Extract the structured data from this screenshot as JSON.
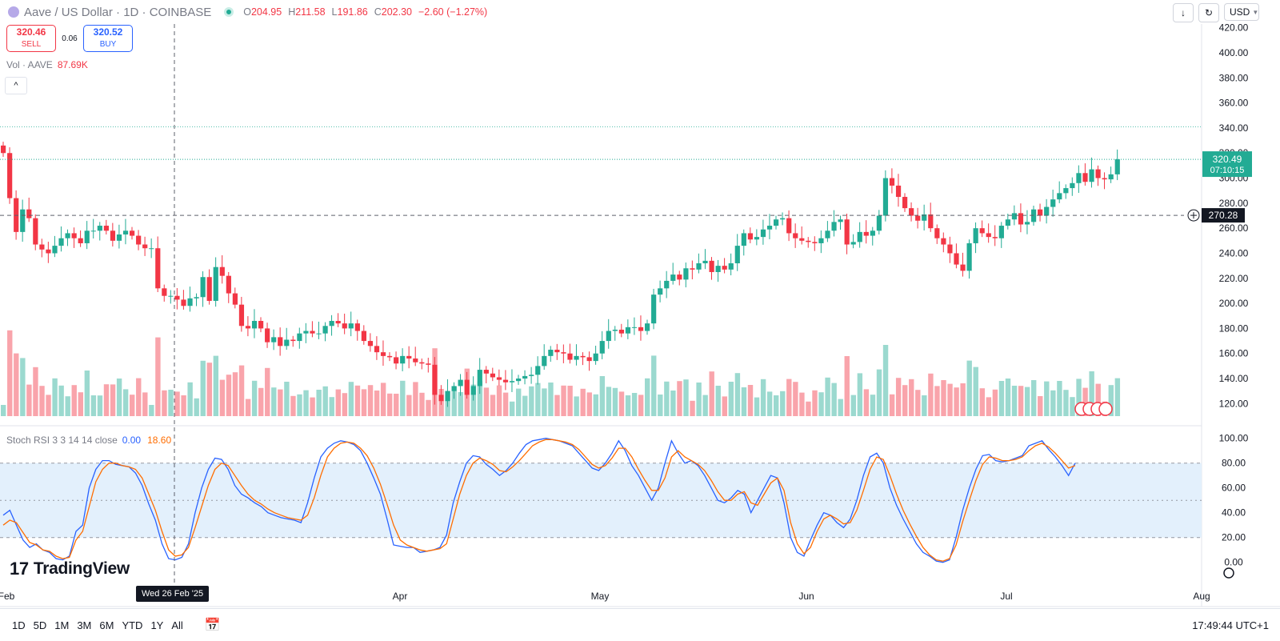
{
  "header": {
    "symbol_title": "Aave / US Dollar · 1D · COINBASE",
    "ohlc": [
      {
        "k": "O",
        "v": "204.95"
      },
      {
        "k": "H",
        "v": "211.58"
      },
      {
        "k": "L",
        "v": "191.86"
      },
      {
        "k": "C",
        "v": "202.30"
      }
    ],
    "change": "−2.60 (−1.27%)",
    "currency_button": "USD",
    "download_icon": "arrow-down-icon",
    "swap_icon": "swap-icon"
  },
  "trade": {
    "sell_price": "320.46",
    "sell_label": "SELL",
    "spread": "0.06",
    "buy_price": "320.52",
    "buy_label": "BUY"
  },
  "volume_legend": {
    "label": "Vol · AAVE",
    "value": "87.69K"
  },
  "rsi_legend": {
    "label": "Stoch RSI 3 3 14 14 close",
    "k_value": "0.00",
    "d_value": "18.60"
  },
  "price_tag": {
    "price": "320.49",
    "countdown": "07:10:15"
  },
  "crosshair_tag": {
    "price": "270.28"
  },
  "date_tooltip": "Wed 26 Feb '25",
  "bottom": {
    "ranges": [
      "1D",
      "5D",
      "1M",
      "3M",
      "6M",
      "YTD",
      "1Y",
      "All"
    ],
    "clock": "17:49:44 UTC+1"
  },
  "brand": "TradingView",
  "colors": {
    "up": "#22ab94",
    "down": "#f23645",
    "k_line": "#2962ff",
    "d_line": "#ff6d00",
    "band": "#e3f0fc"
  },
  "chart_data": [
    {
      "type": "candlestick",
      "title": "Aave / US Dollar · 1D · COINBASE",
      "x_tick_labels": [
        "Feb",
        "Apr",
        "May",
        "Jun",
        "Jul",
        "Aug"
      ],
      "y_tick_labels": [
        "120.00",
        "140.00",
        "160.00",
        "180.00",
        "200.00",
        "220.00",
        "240.00",
        "260.00",
        "280.00",
        "300.00",
        "320.00",
        "340.00",
        "360.00",
        "380.00",
        "400.00",
        "420.00"
      ],
      "ylim": [
        110,
        423
      ],
      "closes": [
        320,
        284,
        257,
        275,
        268,
        247,
        243,
        240,
        246,
        252,
        256,
        252,
        248,
        258,
        258,
        262,
        258,
        250,
        255,
        258,
        254,
        247,
        244,
        244,
        212,
        206,
        206,
        203,
        198,
        204,
        205,
        221,
        202,
        229,
        222,
        208,
        199,
        182,
        180,
        186,
        180,
        169,
        173,
        166,
        171,
        170,
        176,
        178,
        176,
        176,
        182,
        186,
        184,
        180,
        184,
        178,
        170,
        166,
        161,
        158,
        157,
        152,
        158,
        156,
        153,
        152,
        151,
        127,
        122,
        130,
        134,
        139,
        127,
        134,
        147,
        144,
        141,
        139,
        137,
        138,
        140,
        142,
        143,
        150,
        158,
        163,
        161,
        160,
        155,
        158,
        157,
        154,
        160,
        170,
        178,
        179,
        176,
        181,
        181,
        178,
        184,
        207,
        212,
        218,
        223,
        219,
        228,
        227,
        232,
        234,
        225,
        230,
        227,
        232,
        246,
        256,
        251,
        253,
        259,
        262,
        267,
        268,
        256,
        252,
        250,
        249,
        248,
        252,
        258,
        265,
        267,
        247,
        249,
        257,
        254,
        258,
        270,
        300,
        294,
        285,
        276,
        270,
        266,
        271,
        260,
        252,
        247,
        240,
        231,
        226,
        248,
        260,
        256,
        253,
        252,
        262,
        267,
        272,
        263,
        265,
        275,
        270,
        277,
        283,
        288,
        292,
        296,
        304,
        297,
        307,
        300,
        299,
        303,
        315
      ]
    },
    {
      "type": "line",
      "title": "Stoch RSI 3 3 14 14 close",
      "x_tick_labels": [
        "Feb",
        "Apr",
        "May",
        "Jun",
        "Jul",
        "Aug"
      ],
      "y_tick_labels": [
        "0.00",
        "20.00",
        "40.00",
        "60.00",
        "80.00",
        "100.00"
      ],
      "ylim": [
        -6,
        105
      ],
      "bands": [
        20,
        80
      ],
      "series": [
        {
          "name": "K",
          "values": [
            38,
            42,
            30,
            18,
            12,
            15,
            10,
            8,
            3,
            2,
            5,
            25,
            30,
            60,
            75,
            82,
            82,
            79,
            78,
            77,
            72,
            62,
            47,
            34,
            15,
            3,
            2,
            4,
            15,
            40,
            60,
            75,
            84,
            83,
            75,
            62,
            55,
            52,
            48,
            45,
            40,
            38,
            36,
            35,
            34,
            32,
            48,
            68,
            85,
            92,
            96,
            98,
            97,
            95,
            90,
            80,
            68,
            55,
            35,
            14,
            13,
            12,
            12,
            8,
            9,
            10,
            12,
            22,
            48,
            65,
            80,
            86,
            85,
            79,
            75,
            70,
            74,
            80,
            88,
            95,
            98,
            99,
            100,
            99,
            98,
            96,
            94,
            88,
            82,
            76,
            74,
            80,
            88,
            98,
            90,
            78,
            70,
            60,
            50,
            60,
            80,
            98,
            88,
            80,
            82,
            78,
            70,
            60,
            50,
            48,
            52,
            58,
            55,
            40,
            50,
            60,
            70,
            68,
            48,
            20,
            8,
            5,
            18,
            30,
            40,
            38,
            32,
            28,
            35,
            50,
            70,
            85,
            88,
            80,
            60,
            46,
            35,
            25,
            15,
            8,
            5,
            1,
            0,
            2,
            20,
            42,
            60,
            75,
            86,
            87,
            82,
            81,
            82,
            84,
            86,
            94,
            96,
            98,
            91,
            85,
            78,
            70,
            80
          ]
        },
        {
          "name": "D",
          "values": [
            30,
            34,
            32,
            24,
            16,
            14,
            10,
            9,
            5,
            3,
            4,
            18,
            25,
            45,
            65,
            75,
            80,
            80,
            78,
            77,
            75,
            68,
            55,
            42,
            25,
            10,
            5,
            6,
            12,
            28,
            45,
            62,
            75,
            80,
            78,
            70,
            62,
            55,
            50,
            47,
            43,
            40,
            38,
            36,
            35,
            34,
            38,
            52,
            70,
            85,
            92,
            96,
            97,
            96,
            92,
            86,
            76,
            63,
            47,
            30,
            18,
            14,
            12,
            10,
            9,
            10,
            11,
            15,
            35,
            55,
            70,
            80,
            84,
            82,
            79,
            74,
            73,
            77,
            82,
            88,
            94,
            97,
            99,
            99,
            98,
            97,
            95,
            91,
            85,
            79,
            76,
            78,
            84,
            92,
            92,
            85,
            75,
            66,
            58,
            58,
            68,
            85,
            90,
            85,
            82,
            79,
            74,
            66,
            57,
            50,
            50,
            55,
            57,
            48,
            46,
            55,
            64,
            68,
            58,
            32,
            15,
            7,
            12,
            25,
            35,
            38,
            35,
            31,
            32,
            42,
            58,
            75,
            85,
            83,
            70,
            55,
            42,
            31,
            21,
            12,
            6,
            2,
            1,
            3,
            14,
            33,
            50,
            66,
            79,
            85,
            84,
            82,
            82,
            83,
            85,
            90,
            94,
            96,
            93,
            88,
            82,
            76,
            78
          ]
        }
      ]
    }
  ]
}
